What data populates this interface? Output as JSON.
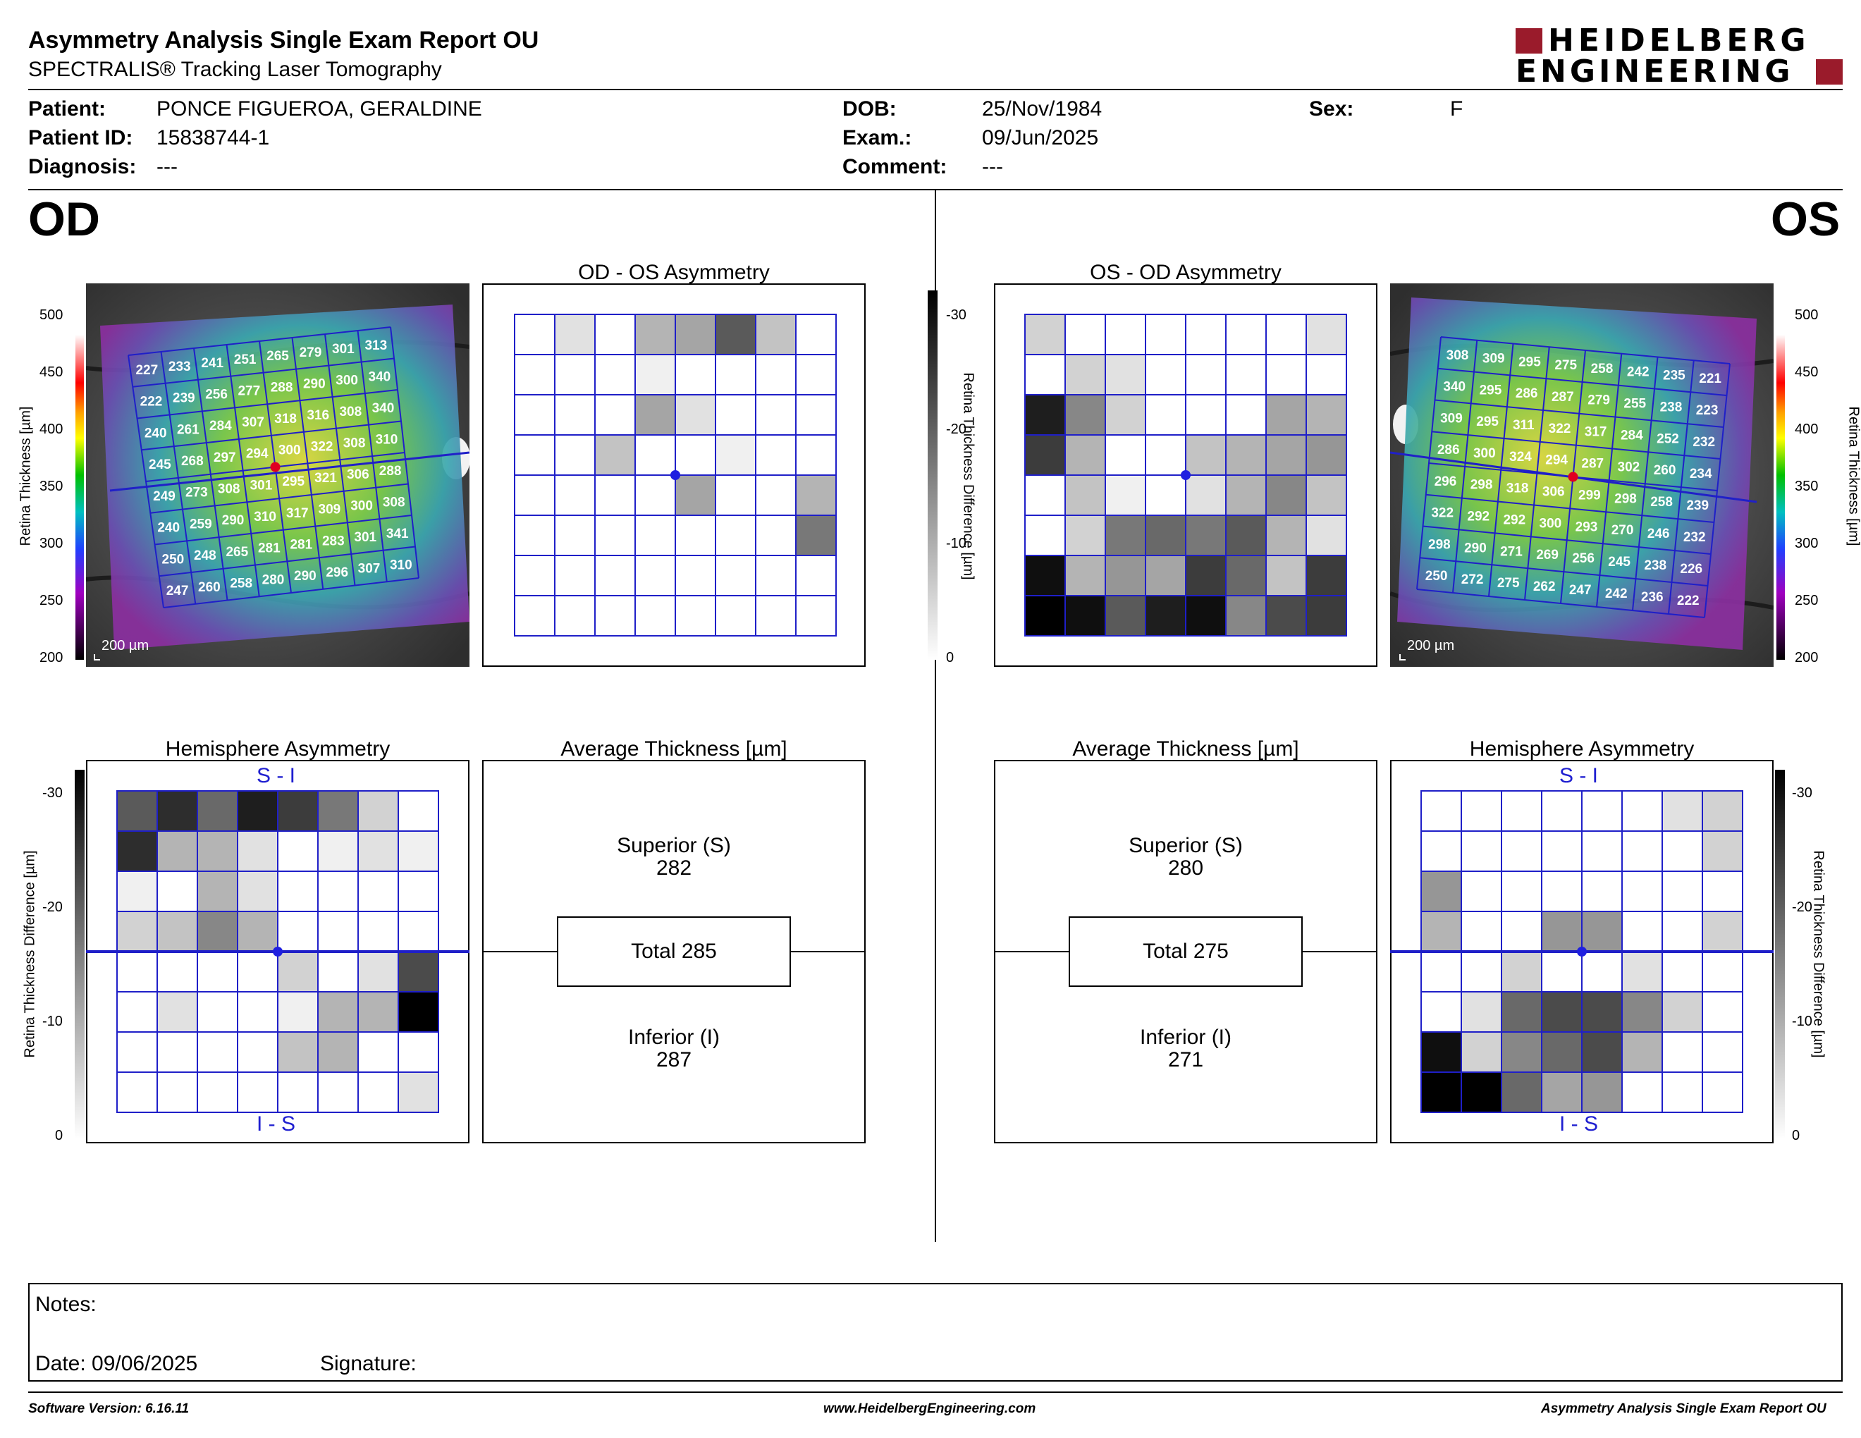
{
  "header": {
    "title": "Asymmetry Analysis Single Exam Report OU",
    "subtitle": "SPECTRALIS® Tracking Laser Tomography",
    "logo_line1": "HEIDELBERG",
    "logo_line2": "ENGINEERING"
  },
  "patient": {
    "patient_label": "Patient:",
    "patient_value": "PONCE FIGUEROA, GERALDINE",
    "id_label": "Patient ID:",
    "id_value": "15838744-1",
    "diagnosis_label": "Diagnosis:",
    "diagnosis_value": "---",
    "dob_label": "DOB:",
    "dob_value": "25/Nov/1984",
    "exam_label": "Exam.:",
    "exam_value": "09/Jun/2025",
    "comment_label": "Comment:",
    "comment_value": "---",
    "sex_label": "Sex:",
    "sex_value": "F"
  },
  "eyes": {
    "od": "OD",
    "os": "OS"
  },
  "panels": {
    "od_os_asym": "OD - OS Asymmetry",
    "os_od_asym": "OS - OD Asymmetry",
    "hemi": "Hemisphere Asymmetry",
    "avg": "Average Thickness [µm]",
    "si": "S - I",
    "is": "I - S"
  },
  "axes": {
    "thickness_label": "Retina  Thickness [µm]",
    "thickness_ticks": [
      "500",
      "450",
      "400",
      "350",
      "300",
      "250",
      "200"
    ],
    "diff_label": "Retina Thickness Difference [µm]",
    "diff_ticks": [
      "-30",
      "-20",
      "-10",
      "0"
    ],
    "scalebar": "200 µm"
  },
  "od_avg": {
    "superior_label": "Superior (S)",
    "superior": "282",
    "total": "Total 285",
    "inferior_label": "Inferior (I)",
    "inferior": "287"
  },
  "os_avg": {
    "superior_label": "Superior (S)",
    "superior": "280",
    "total": "Total 275",
    "inferior_label": "Inferior (I)",
    "inferior": "271"
  },
  "grids": {
    "od_thickness": [
      [
        227,
        233,
        241,
        251,
        265,
        279,
        301,
        313
      ],
      [
        222,
        239,
        256,
        277,
        288,
        290,
        300,
        340
      ],
      [
        240,
        261,
        284,
        307,
        318,
        316,
        308,
        340
      ],
      [
        245,
        268,
        297,
        294,
        300,
        322,
        308,
        310
      ],
      [
        249,
        273,
        308,
        301,
        295,
        321,
        306,
        288
      ],
      [
        240,
        259,
        290,
        310,
        317,
        309,
        300,
        308
      ],
      [
        250,
        248,
        265,
        281,
        281,
        283,
        301,
        341
      ],
      [
        247,
        260,
        258,
        280,
        290,
        296,
        307,
        310
      ]
    ],
    "os_thickness": [
      [
        308,
        309,
        295,
        275,
        258,
        242,
        235,
        221
      ],
      [
        340,
        295,
        286,
        287,
        279,
        255,
        238,
        223
      ],
      [
        309,
        295,
        311,
        322,
        317,
        284,
        252,
        232
      ],
      [
        286,
        300,
        324,
        294,
        287,
        302,
        260,
        234
      ],
      [
        296,
        298,
        318,
        306,
        299,
        298,
        258,
        239
      ],
      [
        322,
        292,
        292,
        300,
        293,
        270,
        246,
        232
      ],
      [
        298,
        290,
        271,
        269,
        256,
        245,
        238,
        226
      ],
      [
        250,
        272,
        275,
        262,
        247,
        242,
        236,
        222
      ]
    ],
    "od_os_asym": [
      [
        0,
        4,
        0,
        10,
        12,
        22,
        8,
        0
      ],
      [
        0,
        0,
        0,
        2,
        0,
        0,
        0,
        0
      ],
      [
        0,
        0,
        0,
        12,
        4,
        0,
        0,
        0
      ],
      [
        0,
        0,
        8,
        0,
        0,
        2,
        0,
        0
      ],
      [
        0,
        0,
        0,
        0,
        12,
        0,
        0,
        10
      ],
      [
        0,
        0,
        0,
        0,
        0,
        0,
        0,
        18
      ],
      [
        0,
        0,
        0,
        0,
        0,
        0,
        0,
        0
      ],
      [
        0,
        0,
        0,
        0,
        0,
        0,
        0,
        0
      ]
    ],
    "os_od_asym": [
      [
        6,
        0,
        0,
        0,
        0,
        0,
        0,
        4
      ],
      [
        0,
        6,
        4,
        0,
        0,
        0,
        0,
        0
      ],
      [
        30,
        16,
        6,
        0,
        0,
        0,
        12,
        10
      ],
      [
        26,
        10,
        0,
        0,
        8,
        10,
        12,
        14
      ],
      [
        0,
        8,
        2,
        0,
        4,
        10,
        16,
        8
      ],
      [
        0,
        6,
        18,
        20,
        18,
        22,
        10,
        4
      ],
      [
        32,
        10,
        14,
        12,
        26,
        20,
        8,
        26
      ],
      [
        34,
        32,
        22,
        30,
        32,
        16,
        24,
        26
      ]
    ],
    "od_hemi": [
      [
        22,
        28,
        20,
        30,
        26,
        18,
        6,
        0
      ],
      [
        28,
        10,
        10,
        4,
        0,
        2,
        4,
        2
      ],
      [
        2,
        0,
        10,
        4,
        0,
        0,
        0,
        0
      ],
      [
        6,
        8,
        16,
        10,
        0,
        0,
        0,
        0
      ],
      [
        0,
        0,
        0,
        0,
        6,
        0,
        4,
        24
      ],
      [
        0,
        4,
        0,
        0,
        2,
        10,
        10,
        34
      ],
      [
        0,
        0,
        0,
        0,
        8,
        10,
        0,
        0
      ],
      [
        0,
        0,
        0,
        0,
        0,
        0,
        0,
        4
      ]
    ],
    "os_hemi": [
      [
        0,
        0,
        0,
        0,
        0,
        0,
        4,
        6
      ],
      [
        0,
        0,
        0,
        0,
        0,
        0,
        0,
        6
      ],
      [
        14,
        0,
        0,
        0,
        0,
        0,
        0,
        0
      ],
      [
        10,
        0,
        0,
        14,
        14,
        0,
        0,
        6
      ],
      [
        0,
        0,
        6,
        0,
        0,
        4,
        0,
        0
      ],
      [
        0,
        4,
        20,
        24,
        24,
        16,
        6,
        0
      ],
      [
        32,
        6,
        16,
        20,
        24,
        10,
        0,
        0
      ],
      [
        34,
        34,
        20,
        12,
        14,
        0,
        0,
        0
      ]
    ]
  },
  "notes": {
    "notes_label": "Notes:",
    "date_label": "Date: 09/06/2025",
    "signature_label": "Signature:"
  },
  "footer": {
    "software": "Software Version: 6.16.11",
    "website": "www.HeidelbergEngineering.com",
    "report": "Asymmetry Analysis Single Exam Report OU"
  }
}
